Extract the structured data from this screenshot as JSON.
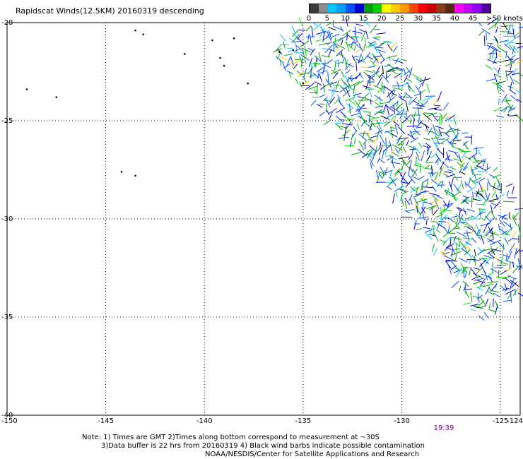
{
  "title": "Rapidscat Winds(12.5KM) 20160319 descending",
  "colorbar": {
    "colors": [
      "#3c3c3c",
      "#8c8c8c",
      "#00c8ff",
      "#00a0ff",
      "#0050ff",
      "#0000d0",
      "#00a000",
      "#00d000",
      "#ffff00",
      "#ffc800",
      "#ff9600",
      "#ff4600",
      "#ff0000",
      "#c80000",
      "#8c3c14",
      "#5a2814",
      "#ff00ff",
      "#c800ff",
      "#9600ff",
      "#5000a0"
    ],
    "labels": [
      "0",
      "5",
      "10",
      "15",
      "20",
      "25",
      "30",
      "35",
      "40",
      "45"
    ],
    "units": ">50 knots"
  },
  "axes": {
    "lat_ticks": [
      "-20",
      "-25",
      "-30",
      "-35",
      "-40"
    ],
    "lon_ticks": [
      "-150",
      "-145",
      "-140",
      "-135",
      "-130",
      "-125",
      "-124"
    ],
    "lat_range": [
      -40,
      -20
    ],
    "lon_range": [
      -150,
      -124
    ]
  },
  "time_label": "19:39",
  "notes": {
    "line1": "Note: 1) Times are GMT 2)Times along bottom correspond to measurement at ~30S",
    "line2": "3)Data buffer is 22 hrs from 20160319 4) Black wind barbs indicate possible contamination",
    "line3": "NOAA/NESDIS/Center for Satellite Applications and Research"
  },
  "swaths": [
    {
      "name": "main",
      "centerline": [
        [
          -134.8,
          -20
        ],
        [
          -130,
          -25.5
        ],
        [
          -126,
          -30.5
        ],
        [
          -124,
          -34
        ]
      ],
      "half_width_deg": 2.3
    },
    {
      "name": "upper-right",
      "centerline": [
        [
          -125.2,
          -20
        ],
        [
          -124,
          -25
        ]
      ],
      "half_width_deg": 1.0
    }
  ],
  "islands": [
    [
      -143.5,
      -20.4
    ],
    [
      -143.1,
      -20.6
    ],
    [
      -141,
      -21.6
    ],
    [
      -139.6,
      -20.9
    ],
    [
      -139.2,
      -21.8
    ],
    [
      -138.5,
      -20.8
    ],
    [
      -139.0,
      -22.2
    ],
    [
      -137.8,
      -23.1
    ],
    [
      -136.2,
      -21.5
    ],
    [
      -135.5,
      -21.4
    ],
    [
      -135.0,
      -23.1
    ],
    [
      -149,
      -23.4
    ],
    [
      -147.5,
      -23.8
    ],
    [
      -144.2,
      -27.6
    ],
    [
      -143.5,
      -27.8
    ],
    [
      -128.3,
      -24.4
    ],
    [
      -124.6,
      -24.7
    ]
  ]
}
